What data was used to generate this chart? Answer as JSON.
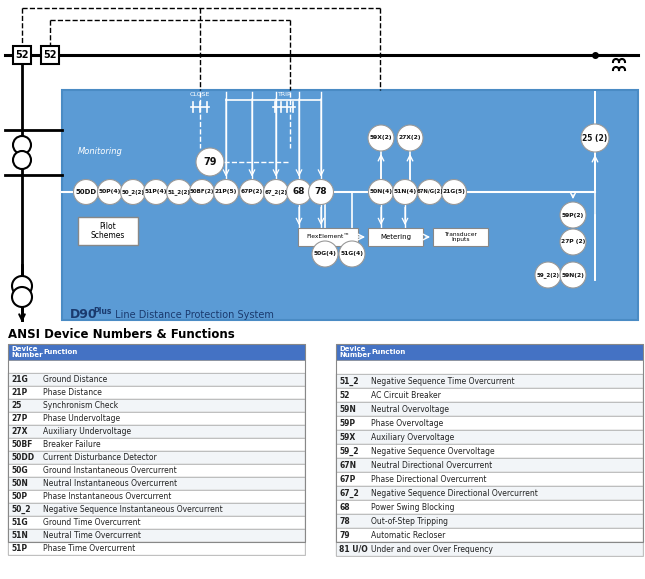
{
  "left_table": {
    "headers": [
      "Device\nNumber",
      "Function"
    ],
    "rows": [
      [
        "21G",
        "Ground Distance"
      ],
      [
        "21P",
        "Phase Distance"
      ],
      [
        "25",
        "Synchronism Check"
      ],
      [
        "27P",
        "Phase Undervoltage"
      ],
      [
        "27X",
        "Auxiliary Undervoltage"
      ],
      [
        "50BF",
        "Breaker Failure"
      ],
      [
        "50DD",
        "Current Disturbance Detector"
      ],
      [
        "50G",
        "Ground Instantaneous Overcurrent"
      ],
      [
        "50N",
        "Neutral Instantaneous Overcurrent"
      ],
      [
        "50P",
        "Phase Instantaneous Overcurrent"
      ],
      [
        "50_2",
        "Negative Sequence Instantaneous Overcurrent"
      ],
      [
        "51G",
        "Ground Time Overcurrent"
      ],
      [
        "51N",
        "Neutral Time Overcurrent"
      ],
      [
        "51P",
        "Phase Time Overcurrent"
      ]
    ]
  },
  "right_table": {
    "headers": [
      "Device\nNumber",
      "Function"
    ],
    "rows": [
      [
        "51_2",
        "Negative Sequence Time Overcurrent"
      ],
      [
        "52",
        "AC Circuit Breaker"
      ],
      [
        "59N",
        "Neutral Overvoltage"
      ],
      [
        "59P",
        "Phase Overvoltage"
      ],
      [
        "59X",
        "Auxiliary Overvoltage"
      ],
      [
        "59_2",
        "Negative Sequence Overvoltage"
      ],
      [
        "67N",
        "Neutral Directional Overcurrent"
      ],
      [
        "67P",
        "Phase Directional Overcurrent"
      ],
      [
        "67_2",
        "Negative Sequence Directional Overcurrent"
      ],
      [
        "68",
        "Power Swing Blocking"
      ],
      [
        "78",
        "Out-of-Step Tripping"
      ],
      [
        "79",
        "Automatic Recloser"
      ],
      [
        "81 U/O",
        "Under and over Over Frequency"
      ]
    ]
  },
  "ansi_title": "ANSI Device Numbers & Functions",
  "blue_bg": "#5b9bd5",
  "table_header_bg": "#4472c4",
  "white": "#ffffff",
  "black": "#000000",
  "light_blue_line": "#c5ddf4"
}
